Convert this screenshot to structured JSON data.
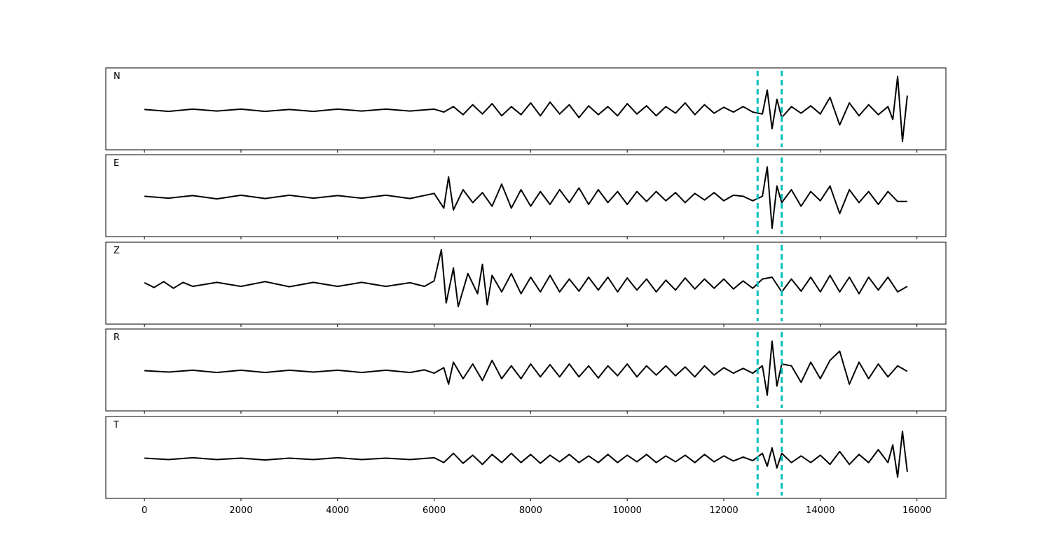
{
  "chart_data": {
    "type": "line",
    "xlim": [
      -800,
      16600
    ],
    "x_ticks": [
      0,
      2000,
      4000,
      6000,
      8000,
      10000,
      12000,
      14000,
      16000
    ],
    "x_tick_labels": [
      "0",
      "2000",
      "4000",
      "6000",
      "8000",
      "10000",
      "12000",
      "14000",
      "16000"
    ],
    "vertical_markers": [
      12700,
      13200
    ],
    "marker_color": "#00bfbf",
    "trace_color": "#000000",
    "grid": false,
    "series": [
      {
        "name": "N",
        "x": [
          0,
          500,
          1000,
          1500,
          2000,
          2500,
          3000,
          3500,
          4000,
          4500,
          5000,
          5500,
          6000,
          6200,
          6400,
          6600,
          6800,
          7000,
          7200,
          7400,
          7600,
          7800,
          8000,
          8200,
          8400,
          8600,
          8800,
          9000,
          9200,
          9400,
          9600,
          9800,
          10000,
          10200,
          10400,
          10600,
          10800,
          11000,
          11200,
          11400,
          11600,
          11800,
          12000,
          12200,
          12400,
          12600,
          12800,
          12900,
          13000,
          13100,
          13200,
          13400,
          13600,
          13800,
          14000,
          14200,
          14400,
          14600,
          14800,
          15000,
          15200,
          15400,
          15500,
          15600,
          15700,
          15800
        ],
        "y": [
          0.02,
          -0.03,
          0.03,
          -0.02,
          0.03,
          -0.03,
          0.02,
          -0.03,
          0.03,
          -0.02,
          0.03,
          -0.02,
          0.03,
          -0.05,
          0.1,
          -0.12,
          0.15,
          -0.1,
          0.18,
          -0.15,
          0.1,
          -0.12,
          0.2,
          -0.15,
          0.22,
          -0.1,
          0.15,
          -0.2,
          0.12,
          -0.12,
          0.1,
          -0.15,
          0.18,
          -0.1,
          0.12,
          -0.15,
          0.1,
          -0.08,
          0.2,
          -0.12,
          0.15,
          -0.08,
          0.08,
          -0.05,
          0.1,
          -0.05,
          -0.1,
          0.55,
          -0.5,
          0.3,
          -0.2,
          0.1,
          -0.08,
          0.12,
          -0.1,
          0.35,
          -0.4,
          0.2,
          -0.15,
          0.15,
          -0.12,
          0.1,
          -0.25,
          0.92,
          -0.85,
          0.4
        ]
      },
      {
        "name": "E",
        "x": [
          0,
          500,
          1000,
          1500,
          2000,
          2500,
          3000,
          3500,
          4000,
          4500,
          5000,
          5500,
          6000,
          6200,
          6300,
          6400,
          6600,
          6800,
          7000,
          7200,
          7400,
          7600,
          7800,
          8000,
          8200,
          8400,
          8600,
          8800,
          9000,
          9200,
          9400,
          9600,
          9800,
          10000,
          10200,
          10400,
          10600,
          10800,
          11000,
          11200,
          11400,
          11600,
          11800,
          12000,
          12200,
          12400,
          12600,
          12800,
          12900,
          13000,
          13100,
          13200,
          13400,
          13600,
          13800,
          14000,
          14200,
          14400,
          14600,
          14800,
          15000,
          15200,
          15400,
          15600,
          15800
        ],
        "y": [
          0.02,
          -0.03,
          0.04,
          -0.05,
          0.05,
          -0.04,
          0.05,
          -0.03,
          0.04,
          -0.03,
          0.05,
          -0.04,
          0.1,
          -0.3,
          0.55,
          -0.35,
          0.2,
          -0.15,
          0.12,
          -0.25,
          0.35,
          -0.3,
          0.2,
          -0.25,
          0.15,
          -0.2,
          0.2,
          -0.15,
          0.25,
          -0.2,
          0.2,
          -0.15,
          0.15,
          -0.2,
          0.15,
          -0.12,
          0.15,
          -0.1,
          0.12,
          -0.15,
          0.1,
          -0.08,
          0.12,
          -0.1,
          0.05,
          0.02,
          -0.1,
          0.02,
          0.82,
          -0.85,
          0.3,
          -0.15,
          0.2,
          -0.25,
          0.15,
          -0.1,
          0.3,
          -0.45,
          0.2,
          -0.15,
          0.15,
          -0.2,
          0.15,
          -0.12,
          -0.12
        ]
      },
      {
        "name": "Z",
        "x": [
          0,
          200,
          400,
          600,
          800,
          1000,
          1500,
          2000,
          2500,
          3000,
          3500,
          4000,
          4500,
          5000,
          5500,
          5800,
          6000,
          6150,
          6250,
          6400,
          6500,
          6700,
          6900,
          7000,
          7100,
          7200,
          7400,
          7600,
          7800,
          8000,
          8200,
          8400,
          8600,
          8800,
          9000,
          9200,
          9400,
          9600,
          9800,
          10000,
          10200,
          10400,
          10600,
          10800,
          11000,
          11200,
          11400,
          11600,
          11800,
          12000,
          12200,
          12400,
          12600,
          12800,
          13000,
          13200,
          13400,
          13600,
          13800,
          14000,
          14200,
          14400,
          14600,
          14800,
          15000,
          15200,
          15400,
          15600,
          15800
        ],
        "y": [
          0.05,
          -0.08,
          0.08,
          -0.1,
          0.06,
          -0.05,
          0.06,
          -0.05,
          0.08,
          -0.06,
          0.06,
          -0.05,
          0.06,
          -0.05,
          0.05,
          -0.05,
          0.1,
          0.95,
          -0.5,
          0.45,
          -0.6,
          0.3,
          -0.25,
          0.55,
          -0.55,
          0.25,
          -0.2,
          0.3,
          -0.25,
          0.2,
          -0.2,
          0.25,
          -0.2,
          0.15,
          -0.18,
          0.2,
          -0.15,
          0.2,
          -0.2,
          0.18,
          -0.15,
          0.15,
          -0.2,
          0.12,
          -0.15,
          0.18,
          -0.12,
          0.15,
          -0.1,
          0.15,
          -0.12,
          0.1,
          -0.1,
          0.15,
          0.2,
          -0.2,
          0.15,
          -0.18,
          0.2,
          -0.2,
          0.25,
          -0.2,
          0.2,
          -0.25,
          0.2,
          -0.15,
          0.2,
          -0.2,
          -0.05
        ]
      },
      {
        "name": "R",
        "x": [
          0,
          500,
          1000,
          1500,
          2000,
          2500,
          3000,
          3500,
          4000,
          4500,
          5000,
          5500,
          5800,
          6000,
          6200,
          6300,
          6400,
          6600,
          6800,
          7000,
          7200,
          7400,
          7600,
          7800,
          8000,
          8200,
          8400,
          8600,
          8800,
          9000,
          9200,
          9400,
          9600,
          9800,
          10000,
          10200,
          10400,
          10600,
          10800,
          11000,
          11200,
          11400,
          11600,
          11800,
          12000,
          12200,
          12400,
          12600,
          12800,
          12900,
          13000,
          13100,
          13200,
          13400,
          13600,
          13800,
          14000,
          14200,
          14400,
          14600,
          14800,
          15000,
          15200,
          15400,
          15600,
          15800
        ],
        "y": [
          0.02,
          -0.02,
          0.03,
          -0.03,
          0.03,
          -0.03,
          0.03,
          -0.02,
          0.03,
          -0.03,
          0.03,
          -0.03,
          0.04,
          -0.05,
          0.1,
          -0.35,
          0.25,
          -0.2,
          0.2,
          -0.25,
          0.3,
          -0.2,
          0.15,
          -0.2,
          0.2,
          -0.15,
          0.18,
          -0.15,
          0.2,
          -0.15,
          0.15,
          -0.18,
          0.15,
          -0.12,
          0.2,
          -0.15,
          0.15,
          -0.1,
          0.15,
          -0.12,
          0.12,
          -0.15,
          0.15,
          -0.1,
          0.1,
          -0.05,
          0.08,
          -0.05,
          0.15,
          -0.65,
          0.82,
          -0.4,
          0.2,
          0.15,
          -0.3,
          0.25,
          -0.2,
          0.3,
          0.55,
          -0.35,
          0.25,
          -0.2,
          0.2,
          -0.15,
          0.15,
          0.0
        ]
      },
      {
        "name": "T",
        "x": [
          0,
          500,
          1000,
          1500,
          2000,
          2500,
          3000,
          3500,
          4000,
          4500,
          5000,
          5500,
          6000,
          6200,
          6400,
          6600,
          6800,
          7000,
          7200,
          7400,
          7600,
          7800,
          8000,
          8200,
          8400,
          8600,
          8800,
          9000,
          9200,
          9400,
          9600,
          9800,
          10000,
          10200,
          10400,
          10600,
          10800,
          11000,
          11200,
          11400,
          11600,
          11800,
          12000,
          12200,
          12400,
          12600,
          12800,
          12900,
          13000,
          13100,
          13200,
          13400,
          13600,
          13800,
          14000,
          14200,
          14400,
          14600,
          14800,
          15000,
          15200,
          15400,
          15500,
          15600,
          15700,
          15800
        ],
        "y": [
          0.02,
          -0.02,
          0.03,
          -0.02,
          0.02,
          -0.03,
          0.02,
          -0.02,
          0.03,
          -0.02,
          0.02,
          -0.02,
          0.03,
          -0.1,
          0.15,
          -0.12,
          0.1,
          -0.15,
          0.12,
          -0.1,
          0.15,
          -0.1,
          0.12,
          -0.12,
          0.1,
          -0.08,
          0.12,
          -0.1,
          0.08,
          -0.1,
          0.12,
          -0.1,
          0.1,
          -0.08,
          0.12,
          -0.1,
          0.08,
          -0.08,
          0.1,
          -0.1,
          0.12,
          -0.08,
          0.08,
          -0.06,
          0.05,
          -0.05,
          0.15,
          -0.2,
          0.3,
          -0.25,
          0.15,
          -0.1,
          0.08,
          -0.1,
          0.1,
          -0.15,
          0.2,
          -0.15,
          0.12,
          -0.1,
          0.25,
          -0.1,
          0.38,
          -0.5,
          0.75,
          -0.35
        ]
      }
    ]
  }
}
